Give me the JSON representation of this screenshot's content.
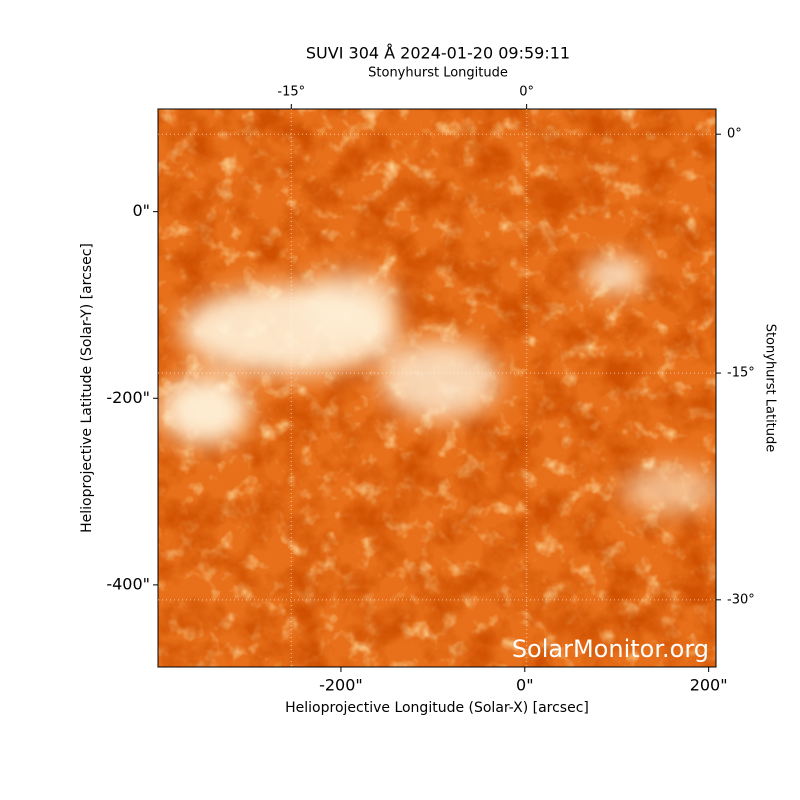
{
  "chart_data": {
    "type": "image",
    "title": "SUVI 304 Å 2024-01-20 09:59:11",
    "xlabel": "Helioprojective Longitude (Solar-X) [arcsec]",
    "ylabel": "Helioprojective Latitude (Solar-Y) [arcsec]",
    "x2label": "Stonyhurst Longitude",
    "y2label": "Stonyhurst Latitude",
    "watermark": "SolarMonitor.org",
    "xlim": [
      -399,
      208
    ],
    "ylim": [
      -488,
      110
    ],
    "xticks": [
      {
        "value": -200,
        "label": "-200\""
      },
      {
        "value": 0,
        "label": "0\""
      },
      {
        "value": 200,
        "label": "200\""
      }
    ],
    "yticks": [
      {
        "value": 0,
        "label": "0\""
      },
      {
        "value": -200,
        "label": "-200\""
      },
      {
        "value": -400,
        "label": "-400\""
      }
    ],
    "x2ticks": [
      {
        "value": -254,
        "label": "-15°"
      },
      {
        "value": 2,
        "label": "0°"
      }
    ],
    "y2ticks": [
      {
        "value": 83,
        "label": "0°"
      },
      {
        "value": -173,
        "label": "-15°"
      },
      {
        "value": -416,
        "label": "-30°"
      }
    ],
    "grid": true
  }
}
